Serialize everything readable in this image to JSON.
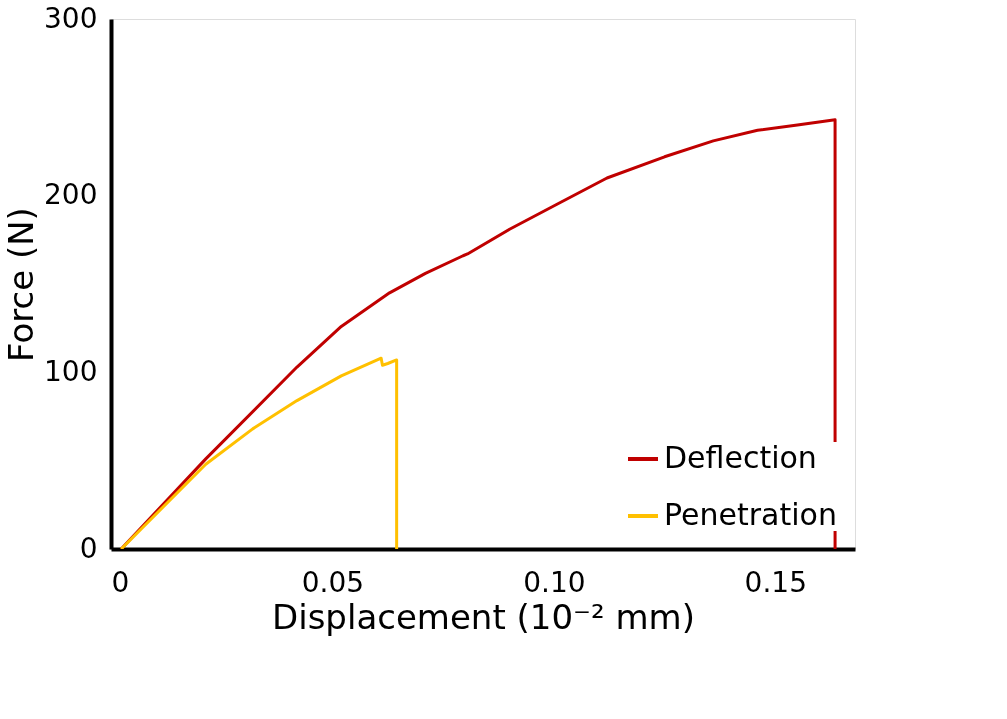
{
  "chart_data": {
    "type": "line",
    "xlabel": "Displacement (10⁻² mm)",
    "ylabel": "Force (N)",
    "xlim": [
      0,
      0.168
    ],
    "ylim": [
      0,
      300
    ],
    "xticks": [
      0,
      0.05,
      {
        "value": 0.1,
        "label": "0.10"
      },
      0.15
    ],
    "yticks": [
      0,
      100,
      200,
      300
    ],
    "grid": false,
    "legend": "bottom right",
    "marker": "none",
    "line_style": "solid",
    "series": [
      {
        "name": "Deflection",
        "color": "#c00000",
        "x": [
          0.0023,
          0.0214,
          0.042,
          0.052,
          0.0629,
          0.071,
          0.0795,
          0.0805,
          0.09,
          0.1006,
          0.112,
          0.125,
          0.136,
          0.146,
          0.155,
          0.1635,
          0.1635
        ],
        "values": [
          0,
          51,
          103,
          126,
          145,
          156,
          166,
          167,
          181,
          195,
          210,
          222,
          231,
          237,
          240,
          243,
          0
        ]
      },
      {
        "name": "Penetration",
        "color": "#ffc000",
        "x": [
          0.0023,
          0.0214,
          0.032,
          0.042,
          0.052,
          0.061,
          0.0613,
          0.0625,
          0.0645,
          0.0645
        ],
        "values": [
          0,
          48,
          68,
          84,
          98,
          108,
          104,
          105,
          107,
          0
        ]
      }
    ]
  }
}
